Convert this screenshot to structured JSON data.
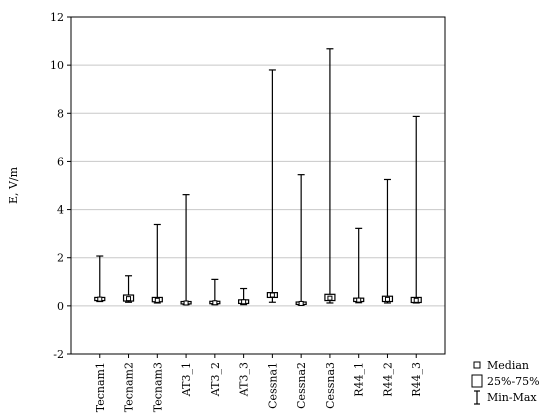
{
  "chart_data": {
    "type": "box",
    "ylabel": "E, V/m",
    "ylim": [
      -2,
      12
    ],
    "yticks": [
      -2,
      0,
      2,
      4,
      6,
      8,
      10,
      12
    ],
    "grid": "horizontal",
    "categories": [
      "Tecnam1",
      "Tecnam2",
      "Tecnam3",
      "AT3_1",
      "AT3_2",
      "AT3_3",
      "Cessna1",
      "Cessna2",
      "Cessna3",
      "R44_1",
      "R44_2",
      "R44_3"
    ],
    "min": [
      0.18,
      0.15,
      0.12,
      0.05,
      0.05,
      0.05,
      0.15,
      0.03,
      0.12,
      0.13,
      0.12,
      0.12
    ],
    "q1": [
      0.22,
      0.2,
      0.17,
      0.08,
      0.09,
      0.1,
      0.35,
      0.06,
      0.22,
      0.18,
      0.18,
      0.14
    ],
    "median": [
      0.28,
      0.3,
      0.23,
      0.12,
      0.13,
      0.17,
      0.45,
      0.1,
      0.32,
      0.24,
      0.27,
      0.23
    ],
    "q3": [
      0.35,
      0.45,
      0.35,
      0.18,
      0.19,
      0.25,
      0.55,
      0.16,
      0.48,
      0.32,
      0.4,
      0.35
    ],
    "max": [
      2.07,
      1.25,
      3.38,
      4.62,
      1.1,
      0.72,
      9.8,
      5.45,
      10.68,
      3.22,
      5.25,
      7.87
    ],
    "legend": {
      "position": "bottom-right",
      "median_label": "Median",
      "box_label": "25%-75%",
      "range_label": "Min-Max"
    }
  }
}
